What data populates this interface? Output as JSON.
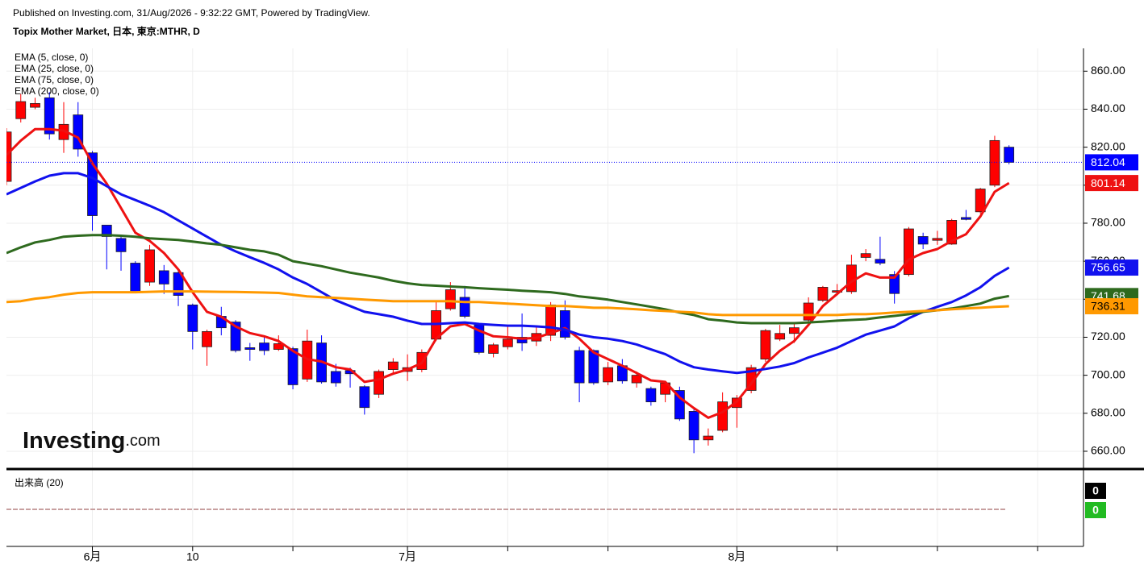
{
  "header": {
    "published": "Published on Investing.com, 31/Aug/2026 - 9:32:22 GMT, Powered by TradingView.",
    "instrument": "Topix Mother Market, 日本, 東京:MTHR, D"
  },
  "logo": {
    "name": "Investing",
    "suffix": ".com"
  },
  "chart_data": {
    "type": "candlestick",
    "categories": [
      null,
      null,
      null,
      null,
      null,
      null,
      "6月",
      null,
      null,
      null,
      null,
      null,
      null,
      "10",
      null,
      null,
      null,
      null,
      null,
      null,
      null,
      null,
      null,
      null,
      null,
      null,
      null,
      null,
      "7月",
      null,
      null,
      null,
      null,
      null,
      null,
      null,
      null,
      null,
      null,
      null,
      null,
      null,
      null,
      null,
      null,
      null,
      null,
      null,
      null,
      null,
      null,
      "8月",
      null,
      null,
      null,
      null,
      null,
      null,
      null,
      null,
      null,
      null,
      null,
      null,
      null,
      null,
      null,
      null,
      null,
      null,
      null
    ],
    "xlim": [
      0,
      75.2
    ],
    "xgrid": [
      6,
      13,
      20,
      28,
      35,
      42,
      51,
      58,
      65,
      72
    ],
    "up_color": "#ff0000",
    "down_color": "#0000ff",
    "open": [
      802,
      835,
      841,
      846,
      824,
      837,
      817,
      779,
      772,
      759,
      749,
      755,
      754,
      737,
      715,
      731,
      728,
      714.5,
      717,
      713.6,
      714,
      698,
      717,
      702,
      702.5,
      694,
      690,
      703,
      702,
      703,
      719,
      735,
      741,
      726.5,
      711.5,
      715,
      720,
      718,
      721,
      734,
      713,
      713,
      696.5,
      705,
      696,
      693,
      690,
      692,
      681,
      666,
      671,
      683,
      692,
      708.5,
      719,
      722,
      729,
      739.4,
      743.7,
      744,
      762,
      761,
      753,
      753,
      773,
      771,
      769,
      783,
      786,
      800,
      820
    ],
    "high": [
      830,
      848,
      846,
      849,
      843.7,
      843.7,
      818,
      779,
      773,
      760,
      768.6,
      758,
      755.7,
      737.7,
      724,
      736,
      729,
      717,
      721,
      721,
      715,
      724,
      721,
      706,
      704,
      694.8,
      703,
      709,
      711,
      713.6,
      738.5,
      749,
      747,
      727,
      717,
      725.7,
      732.5,
      725.7,
      738.5,
      739.4,
      715,
      713.6,
      707,
      708.5,
      702,
      694,
      697,
      694,
      682,
      672,
      691,
      689.6,
      705.5,
      724.4,
      726.5,
      727.4,
      741,
      747,
      748,
      763.4,
      766.4,
      772.9,
      754.8,
      778,
      775,
      776,
      782.3,
      787,
      798.6,
      826,
      821
    ],
    "low": [
      800,
      833,
      840,
      824,
      817,
      815,
      776,
      755.7,
      755,
      743.7,
      747,
      742.8,
      736.4,
      713.6,
      705,
      721,
      712,
      707.6,
      710.6,
      712.8,
      692.6,
      696.5,
      695.6,
      694,
      693.5,
      679.3,
      688,
      700.8,
      697,
      701.6,
      718,
      734,
      730,
      711,
      709.4,
      713.6,
      712.8,
      715.4,
      718,
      718.8,
      685.8,
      695,
      694.8,
      695.6,
      693.5,
      684,
      685.8,
      676,
      659,
      663,
      670,
      672.4,
      690.5,
      707,
      718,
      717,
      727.4,
      738.5,
      742,
      742.8,
      760,
      757.9,
      737.7,
      752,
      766.4,
      768.6,
      768.6,
      781.5,
      785,
      799,
      811
    ],
    "close": [
      828,
      844,
      843,
      827,
      832,
      819,
      784,
      773,
      765,
      744,
      766,
      748,
      742,
      723,
      723,
      725,
      713,
      713.6,
      713,
      716.6,
      695,
      718,
      696.5,
      696,
      700.8,
      683,
      702,
      707,
      704,
      712,
      734,
      745,
      731,
      712,
      716,
      719,
      717,
      722,
      737,
      720,
      696,
      696,
      704,
      697,
      700,
      686,
      696,
      677,
      666,
      668,
      686,
      688,
      704,
      723.5,
      722,
      725,
      738,
      746.3,
      744.5,
      758,
      764,
      759,
      743,
      777,
      769,
      772,
      781.5,
      782,
      798,
      823.5,
      812.04
    ],
    "series": [
      {
        "name": "EMA (5, close, 0)",
        "color": "#ee1111",
        "values": [
          815.8,
          823.5,
          829.5,
          829.5,
          828.7,
          825,
          811.5,
          800.8,
          788,
          775,
          770.7,
          764.3,
          755.7,
          743.7,
          733.4,
          730.8,
          725.7,
          722.2,
          720.5,
          718,
          712.8,
          708.5,
          707.2,
          704.2,
          703,
          696.5,
          697.8,
          700.8,
          703,
          706.4,
          719.2,
          725.7,
          727,
          723.5,
          720.5,
          720,
          719.2,
          719.7,
          722.2,
          724.8,
          719.2,
          712,
          708.5,
          705,
          701.2,
          697.3,
          696.5,
          688.3,
          682.7,
          677.6,
          680.6,
          686.2,
          695.6,
          705.9,
          712.8,
          718,
          726.5,
          736.4,
          742.8,
          749.3,
          753.6,
          751.4,
          751.4,
          760.9,
          764.3,
          766.4,
          770.7,
          774.2,
          783.6,
          796.5,
          801.14
        ]
      },
      {
        "name": "EMA (25, close, 0)",
        "color": "#1111ee",
        "values": [
          795.2,
          798.6,
          802,
          805,
          806.3,
          806.3,
          803.8,
          799.5,
          795.2,
          792.2,
          789.2,
          785.8,
          781.5,
          777.2,
          772.9,
          768.6,
          765.2,
          762.1,
          759.1,
          755.7,
          751.4,
          748,
          743.7,
          739.4,
          736.4,
          733.4,
          732.1,
          730.8,
          728.7,
          727,
          727,
          727.4,
          727.8,
          727,
          726.5,
          726.1,
          726.1,
          725.7,
          725.2,
          724,
          721.4,
          720,
          719.2,
          718,
          716.2,
          713.6,
          711.1,
          707.2,
          704.2,
          703,
          702.1,
          701.2,
          702.1,
          703.3,
          704.6,
          706.4,
          709.4,
          711.9,
          714.5,
          718,
          721.4,
          723.5,
          725.7,
          730,
          733.4,
          736,
          738.5,
          742,
          746.3,
          752.3,
          756.65
        ]
      },
      {
        "name": "EMA (75, close, 0)",
        "color": "#2e6a1e",
        "values": [
          764.3,
          767.3,
          769.9,
          771.2,
          772.9,
          773.4,
          773.7,
          773.7,
          773.4,
          772.9,
          772,
          771.6,
          771.2,
          770.3,
          769.4,
          768.6,
          767.3,
          766,
          765.2,
          763.4,
          760,
          758.7,
          757.4,
          755.7,
          754,
          752.7,
          751.4,
          749.7,
          748.4,
          747.5,
          747.1,
          746.7,
          746.3,
          745.8,
          745.4,
          745,
          744.5,
          744.1,
          743.7,
          742.8,
          741.5,
          740.7,
          739.8,
          738.5,
          737.3,
          736,
          734.7,
          733,
          731.7,
          729.5,
          728.7,
          727.8,
          727.4,
          727.4,
          727.4,
          727.4,
          727.8,
          728.2,
          728.7,
          729.1,
          729.5,
          730.4,
          731.2,
          732.1,
          733.4,
          734.2,
          735.1,
          736.4,
          737.7,
          740.3,
          741.68
        ]
      },
      {
        "name": "EMA (200, close, 0)",
        "color": "#ff9900",
        "values": [
          738.5,
          739,
          740.3,
          741.1,
          742.4,
          743.3,
          743.7,
          743.7,
          743.7,
          743.7,
          743.9,
          744.1,
          744.1,
          744.1,
          744,
          743.9,
          743.8,
          743.7,
          743.5,
          743.3,
          742.4,
          741.5,
          741.1,
          740.7,
          740.3,
          739.8,
          739.4,
          739,
          739,
          739,
          739,
          739,
          738.5,
          738.5,
          738.1,
          737.7,
          737.3,
          736.8,
          736.4,
          736.4,
          736,
          735.5,
          735.5,
          735.1,
          734.7,
          734.2,
          733.8,
          733.4,
          733,
          732.1,
          731.7,
          731.7,
          731.7,
          731.7,
          731.7,
          731.7,
          731.7,
          731.7,
          731.7,
          732.1,
          732.1,
          732.5,
          733,
          733.4,
          733.8,
          734.2,
          734.7,
          735.1,
          735.5,
          736,
          736.31
        ]
      }
    ],
    "ylim": [
      651.5,
      872
    ],
    "yticks": [
      {
        "value": 660,
        "label": "660.00"
      },
      {
        "value": 680,
        "label": "680.00"
      },
      {
        "value": 700,
        "label": "700.00"
      },
      {
        "value": 720,
        "label": "720.00"
      },
      {
        "value": 740,
        "label": "740.00"
      },
      {
        "value": 760,
        "label": "760.00"
      },
      {
        "value": 780,
        "label": "780.00"
      },
      {
        "value": 800,
        "label": "800.00"
      },
      {
        "value": 820,
        "label": "820.00"
      },
      {
        "value": 840,
        "label": "840.00"
      },
      {
        "value": 860,
        "label": "860.00"
      }
    ],
    "grid": true,
    "volume": {
      "title": "出来高 (20)",
      "last": 0,
      "ma_last": 0,
      "ma_color": "#22bb22"
    }
  }
}
